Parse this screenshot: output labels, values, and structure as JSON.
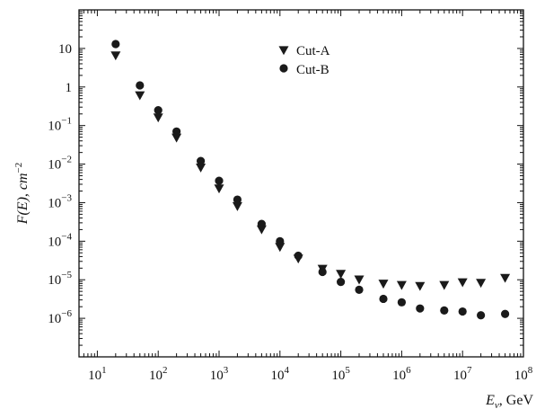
{
  "chart_data": {
    "type": "scatter",
    "title": "",
    "xlabel": {
      "main": "E",
      "sub": "ν",
      "unit": ", GeV"
    },
    "ylabel": {
      "main": "F(E), cm",
      "sup": "−2"
    },
    "xscale": "log",
    "yscale": "log",
    "xlim": [
      5,
      100000000
    ],
    "ylim": [
      1e-07,
      100
    ],
    "grid": false,
    "legend_position": "top-center",
    "x_ticks": [
      {
        "value": 10,
        "base": "10",
        "exp": "1"
      },
      {
        "value": 100,
        "base": "10",
        "exp": "2"
      },
      {
        "value": 1000,
        "base": "10",
        "exp": "3"
      },
      {
        "value": 10000,
        "base": "10",
        "exp": "4"
      },
      {
        "value": 100000,
        "base": "10",
        "exp": "5"
      },
      {
        "value": 1000000,
        "base": "10",
        "exp": "6"
      },
      {
        "value": 10000000,
        "base": "10",
        "exp": "7"
      },
      {
        "value": 100000000,
        "base": "10",
        "exp": "8"
      }
    ],
    "y_ticks": [
      {
        "value": 10,
        "base": "10",
        "exp": ""
      },
      {
        "value": 1,
        "base": "1",
        "exp": ""
      },
      {
        "value": 0.1,
        "base": "10",
        "exp": "−1"
      },
      {
        "value": 0.01,
        "base": "10",
        "exp": "−2"
      },
      {
        "value": 0.001,
        "base": "10",
        "exp": "−3"
      },
      {
        "value": 0.0001,
        "base": "10",
        "exp": "−4"
      },
      {
        "value": 1e-05,
        "base": "10",
        "exp": "−5"
      },
      {
        "value": 1e-06,
        "base": "10",
        "exp": "−6"
      }
    ],
    "series": [
      {
        "name": "Cut-A",
        "marker": "triangle-down",
        "color": "#1a1a1a",
        "x": [
          20,
          50,
          100,
          200,
          500,
          1000,
          2000,
          5000,
          10000,
          20000,
          50000,
          100000,
          200000,
          500000,
          1000000,
          2000000,
          5000000,
          10000000,
          20000000,
          50000000
        ],
        "y": [
          6.5,
          0.6,
          0.16,
          0.048,
          0.008,
          0.0023,
          0.0008,
          0.0002,
          7e-05,
          3.5e-05,
          1.9e-05,
          1.4e-05,
          1e-05,
          7.8e-06,
          7.2e-06,
          6.8e-06,
          7.2e-06,
          8.5e-06,
          8.2e-06,
          1.1e-05
        ]
      },
      {
        "name": "Cut-B",
        "marker": "circle",
        "color": "#1a1a1a",
        "x": [
          20,
          50,
          100,
          200,
          500,
          1000,
          2000,
          5000,
          10000,
          20000,
          50000,
          100000,
          200000,
          500000,
          1000000,
          2000000,
          5000000,
          10000000,
          20000000,
          50000000
        ],
        "y": [
          13,
          1.1,
          0.25,
          0.07,
          0.012,
          0.0037,
          0.0012,
          0.00028,
          0.0001,
          4.2e-05,
          1.6e-05,
          8.8e-06,
          5.5e-06,
          3.2e-06,
          2.6e-06,
          1.8e-06,
          1.6e-06,
          1.5e-06,
          1.2e-06,
          1.3e-06
        ]
      }
    ]
  }
}
